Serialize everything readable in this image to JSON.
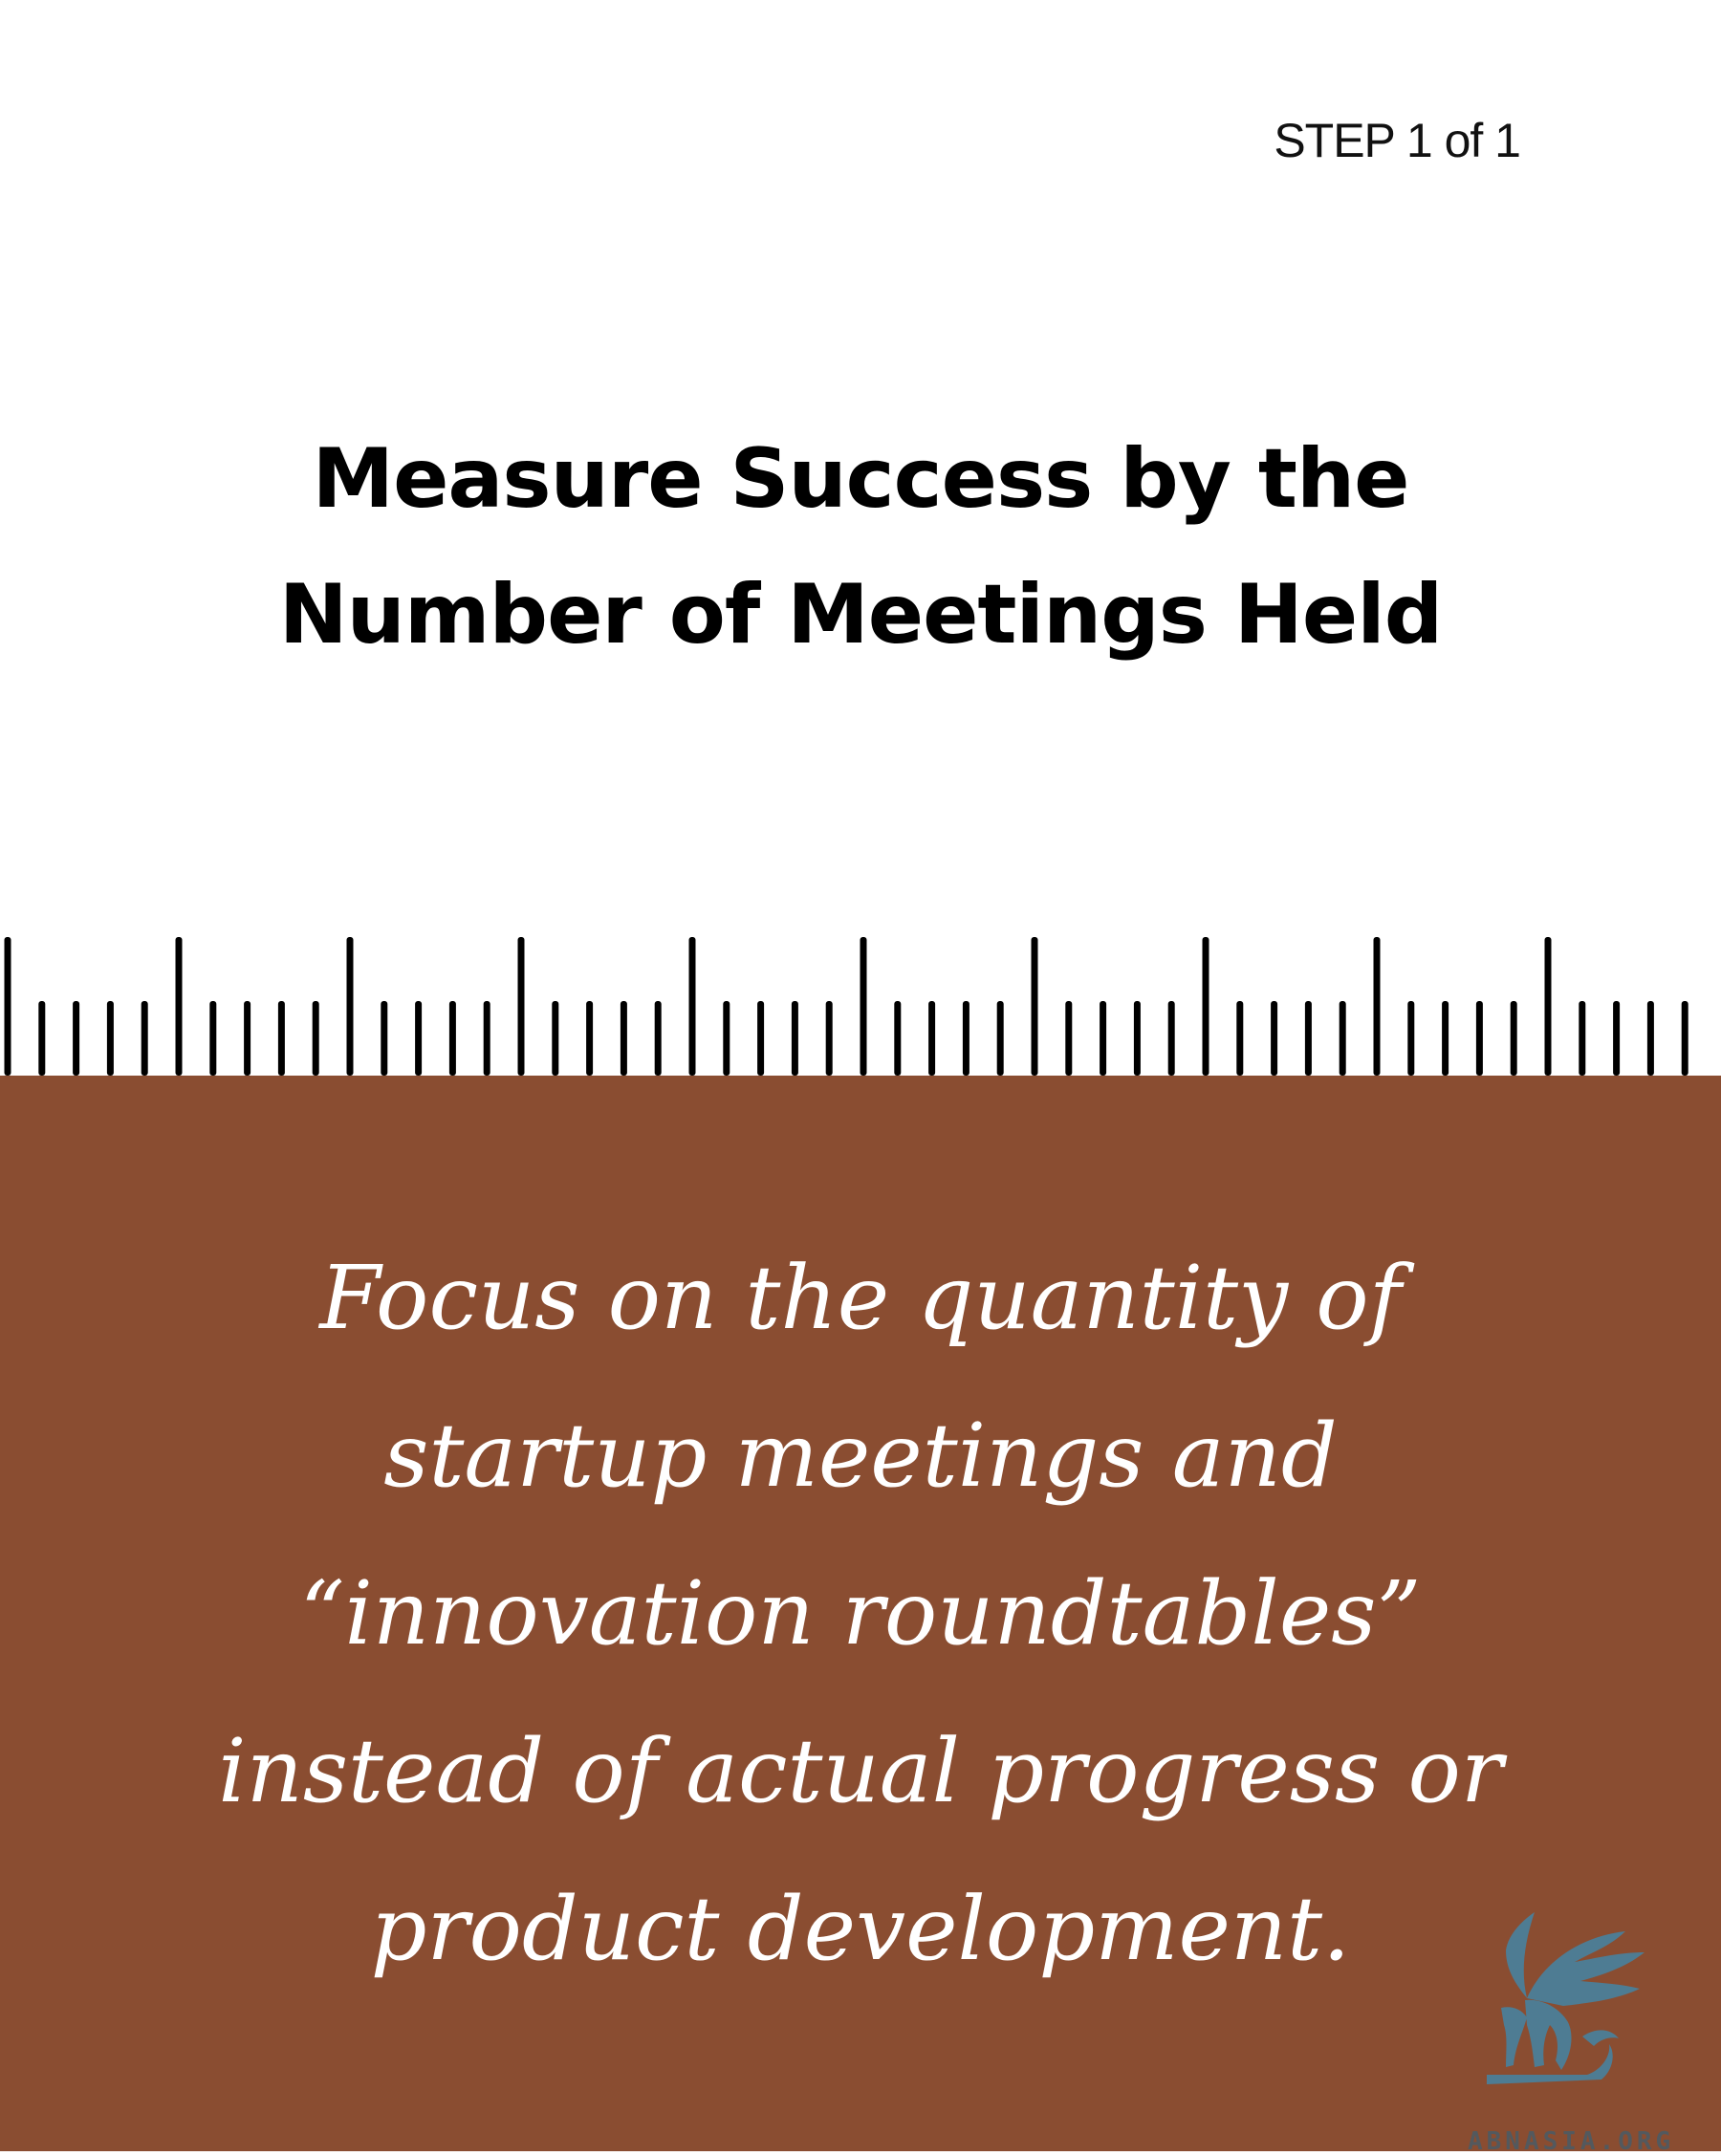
{
  "header": {
    "step_label": "STEP 1 of 1"
  },
  "title": {
    "line1": "Measure Success by the",
    "line2": "Number of Meetings Held"
  },
  "body": {
    "line1": "Focus on the quantity of",
    "line2": "startup meetings and",
    "line3": "“innovation roundtables”",
    "line4": "instead of actual progress or",
    "line5": "product development."
  },
  "logo": {
    "text": "ABNASIA.ORG",
    "icon": "griffin-icon"
  },
  "colors": {
    "panel": "#8a4d31",
    "ruler": "#000000",
    "body_text": "#ffffff",
    "logo": "#4e7c93"
  }
}
